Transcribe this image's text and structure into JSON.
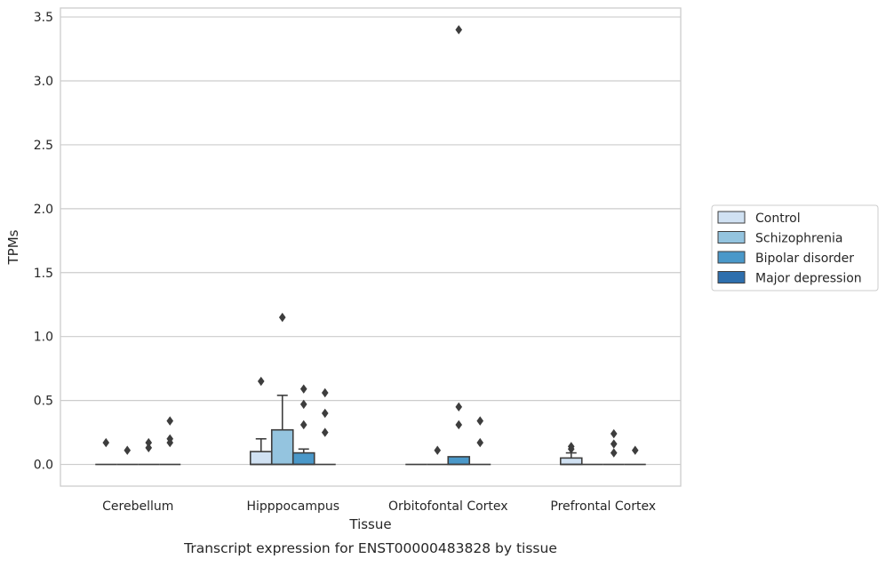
{
  "chart_data": {
    "type": "box",
    "title": "",
    "caption": "Transcript expression for ENST00000483828 by tissue",
    "xlabel": "Tissue",
    "ylabel": "TPMs",
    "ylim": [
      -0.17,
      3.57
    ],
    "yticks": [
      0.0,
      0.5,
      1.0,
      1.5,
      2.0,
      2.5,
      3.0,
      3.5
    ],
    "ytick_labels": [
      "0.0",
      "0.5",
      "1.0",
      "1.5",
      "2.0",
      "2.5",
      "3.0",
      "3.5"
    ],
    "grid": true,
    "legend_position": "right",
    "categories": [
      "Cerebellum",
      "Hipppocampus",
      "Orbitofontal Cortex",
      "Prefrontal Cortex"
    ],
    "series": [
      {
        "name": "Control",
        "color": "#d0e1f2",
        "boxes": [
          {
            "category": "Cerebellum",
            "q1": 0.0,
            "median": 0.0,
            "q3": 0.0,
            "whisker_low": 0.0,
            "whisker_high": 0.0,
            "outliers": [
              0.17
            ]
          },
          {
            "category": "Hipppocampus",
            "q1": 0.0,
            "median": 0.0,
            "q3": 0.1,
            "whisker_low": 0.0,
            "whisker_high": 0.2,
            "outliers": [
              0.65
            ]
          },
          {
            "category": "Orbitofontal Cortex",
            "q1": 0.0,
            "median": 0.0,
            "q3": 0.0,
            "whisker_low": 0.0,
            "whisker_high": 0.0,
            "outliers": []
          },
          {
            "category": "Prefrontal Cortex",
            "q1": 0.0,
            "median": 0.0,
            "q3": 0.05,
            "whisker_low": 0.0,
            "whisker_high": 0.09,
            "outliers": [
              0.12,
              0.14
            ]
          }
        ]
      },
      {
        "name": "Schizophrenia",
        "color": "#94c4df",
        "boxes": [
          {
            "category": "Cerebellum",
            "q1": 0.0,
            "median": 0.0,
            "q3": 0.0,
            "whisker_low": 0.0,
            "whisker_high": 0.0,
            "outliers": [
              0.11
            ]
          },
          {
            "category": "Hipppocampus",
            "q1": 0.0,
            "median": 0.0,
            "q3": 0.27,
            "whisker_low": 0.0,
            "whisker_high": 0.54,
            "outliers": [
              1.15
            ]
          },
          {
            "category": "Orbitofontal Cortex",
            "q1": 0.0,
            "median": 0.0,
            "q3": 0.0,
            "whisker_low": 0.0,
            "whisker_high": 0.0,
            "outliers": [
              0.11
            ]
          },
          {
            "category": "Prefrontal Cortex",
            "q1": 0.0,
            "median": 0.0,
            "q3": 0.0,
            "whisker_low": 0.0,
            "whisker_high": 0.0,
            "outliers": []
          }
        ]
      },
      {
        "name": "Bipolar disorder",
        "color": "#4a98c9",
        "boxes": [
          {
            "category": "Cerebellum",
            "q1": 0.0,
            "median": 0.0,
            "q3": 0.0,
            "whisker_low": 0.0,
            "whisker_high": 0.0,
            "outliers": [
              0.13,
              0.17
            ]
          },
          {
            "category": "Hipppocampus",
            "q1": 0.0,
            "median": 0.0,
            "q3": 0.09,
            "whisker_low": 0.0,
            "whisker_high": 0.12,
            "outliers": [
              0.31,
              0.47,
              0.59
            ]
          },
          {
            "category": "Orbitofontal Cortex",
            "q1": 0.0,
            "median": 0.0,
            "q3": 0.06,
            "whisker_low": 0.0,
            "whisker_high": 0.06,
            "outliers": [
              0.31,
              0.45,
              3.4
            ]
          },
          {
            "category": "Prefrontal Cortex",
            "q1": 0.0,
            "median": 0.0,
            "q3": 0.0,
            "whisker_low": 0.0,
            "whisker_high": 0.0,
            "outliers": [
              0.09,
              0.16,
              0.24
            ]
          }
        ]
      },
      {
        "name": "Major depression",
        "color": "#2e6fad",
        "boxes": [
          {
            "category": "Cerebellum",
            "q1": 0.0,
            "median": 0.0,
            "q3": 0.0,
            "whisker_low": 0.0,
            "whisker_high": 0.0,
            "outliers": [
              0.17,
              0.2,
              0.34
            ]
          },
          {
            "category": "Hipppocampus",
            "q1": 0.0,
            "median": 0.0,
            "q3": 0.0,
            "whisker_low": 0.0,
            "whisker_high": 0.0,
            "outliers": [
              0.25,
              0.4,
              0.56
            ]
          },
          {
            "category": "Orbitofontal Cortex",
            "q1": 0.0,
            "median": 0.0,
            "q3": 0.0,
            "whisker_low": 0.0,
            "whisker_high": 0.0,
            "outliers": [
              0.17,
              0.34
            ]
          },
          {
            "category": "Prefrontal Cortex",
            "q1": 0.0,
            "median": 0.0,
            "q3": 0.0,
            "whisker_low": 0.0,
            "whisker_high": 0.0,
            "outliers": [
              0.11
            ]
          }
        ]
      }
    ]
  }
}
